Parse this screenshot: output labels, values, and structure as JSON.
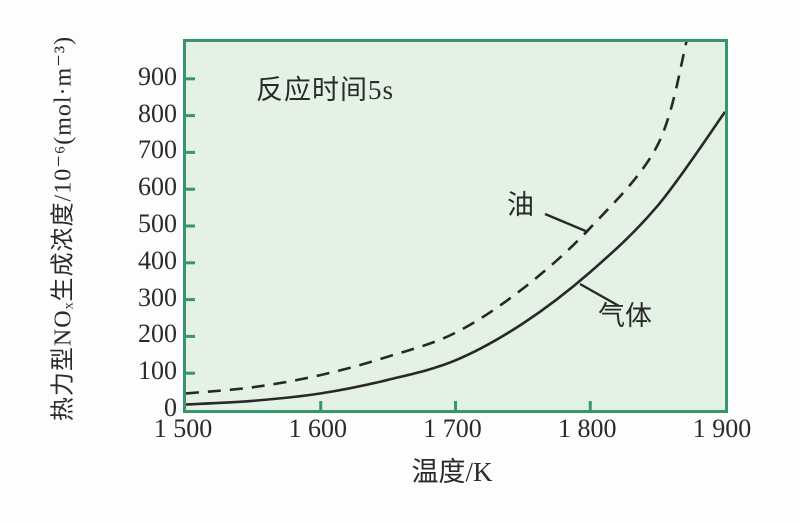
{
  "chart_data": {
    "type": "line",
    "annotation": "反应时间5s",
    "xlabel": "温度/K",
    "ylabel": "热力型NOₓ生成浓度/10⁻⁶(mol·m⁻³)",
    "xlim": [
      1500,
      1900
    ],
    "ylim": [
      0,
      1000
    ],
    "grid": false,
    "legend_position": "inline-labels",
    "xticks": [
      {
        "value": 1500,
        "label": "1 500"
      },
      {
        "value": 1600,
        "label": "1 600"
      },
      {
        "value": 1700,
        "label": "1 700"
      },
      {
        "value": 1800,
        "label": "1 800"
      },
      {
        "value": 1900,
        "label": "1 900"
      }
    ],
    "yticks": [
      {
        "value": 0,
        "label": "0"
      },
      {
        "value": 100,
        "label": "100"
      },
      {
        "value": 200,
        "label": "200"
      },
      {
        "value": 300,
        "label": "300"
      },
      {
        "value": 400,
        "label": "400"
      },
      {
        "value": 500,
        "label": "500"
      },
      {
        "value": 600,
        "label": "600"
      },
      {
        "value": 700,
        "label": "700"
      },
      {
        "value": 800,
        "label": "800"
      },
      {
        "value": 900,
        "label": "900"
      }
    ],
    "series": [
      {
        "name": "油",
        "line_style": "dashed",
        "points": [
          [
            1500,
            45
          ],
          [
            1550,
            62
          ],
          [
            1600,
            95
          ],
          [
            1650,
            145
          ],
          [
            1700,
            210
          ],
          [
            1750,
            330
          ],
          [
            1800,
            495
          ],
          [
            1850,
            720
          ],
          [
            1872,
            1010
          ]
        ]
      },
      {
        "name": "气体",
        "line_style": "solid",
        "points": [
          [
            1500,
            15
          ],
          [
            1550,
            25
          ],
          [
            1600,
            45
          ],
          [
            1650,
            82
          ],
          [
            1700,
            135
          ],
          [
            1750,
            235
          ],
          [
            1800,
            375
          ],
          [
            1850,
            555
          ],
          [
            1900,
            810
          ]
        ]
      }
    ],
    "colors": {
      "plot_background": "#e4f2e6",
      "frame_and_ticks": "#36966e",
      "curves": "#282828",
      "text": "#2a2a2a",
      "page_background": "#fdfdfd"
    }
  }
}
